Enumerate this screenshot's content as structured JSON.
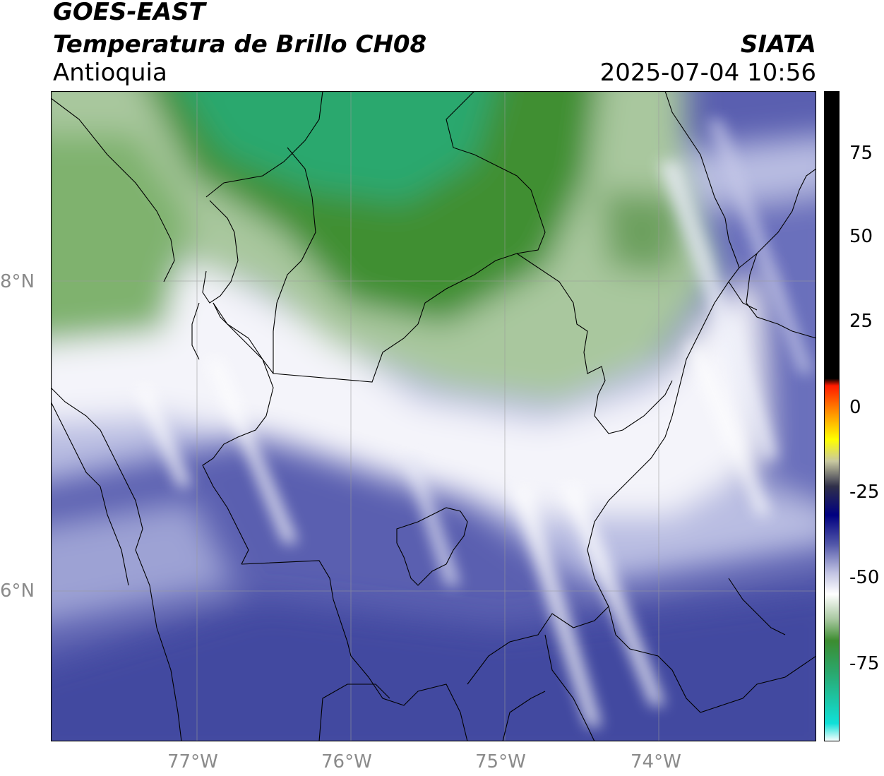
{
  "header": {
    "title_line1": "GOES-EAST",
    "title_line2": "Temperatura de Brillo CH08",
    "subtitle": "Antioquia",
    "brand": "SIATA",
    "datetime": "2025-07-04 10:56"
  },
  "map": {
    "lat_ticks": [
      "8°N",
      "6°N"
    ],
    "lon_ticks": [
      "77°W",
      "76°W",
      "75°W",
      "74°W"
    ],
    "gridlines": true,
    "background_colors": {
      "cold_green": "#2e8b2e",
      "teal": "#2aa86e",
      "white": "#ffffff",
      "lavender": "#b8bce0",
      "blue_purple": "#5a5fb0",
      "deep_blue": "#3d4296"
    }
  },
  "colorbar": {
    "tick_labels": [
      "75",
      "50",
      "25",
      "0",
      "-25",
      "-50",
      "-75"
    ],
    "stops": [
      {
        "value": 90,
        "color": "#000000"
      },
      {
        "value": 10,
        "color": "#000000"
      },
      {
        "value": 8,
        "color": "#ff1a00"
      },
      {
        "value": 0,
        "color": "#ff9900"
      },
      {
        "value": -7,
        "color": "#ffff00"
      },
      {
        "value": -13,
        "color": "#c8c8a0"
      },
      {
        "value": -20,
        "color": "#30304a"
      },
      {
        "value": -28,
        "color": "#000080"
      },
      {
        "value": -36,
        "color": "#5055a8"
      },
      {
        "value": -44,
        "color": "#c0c2e2"
      },
      {
        "value": -50,
        "color": "#ffffff"
      },
      {
        "value": -57,
        "color": "#a8c8a0"
      },
      {
        "value": -63,
        "color": "#3c8c30"
      },
      {
        "value": -72,
        "color": "#2aa86e"
      },
      {
        "value": -86,
        "color": "#10e0d8"
      },
      {
        "value": -91,
        "color": "#ffffff"
      }
    ]
  }
}
